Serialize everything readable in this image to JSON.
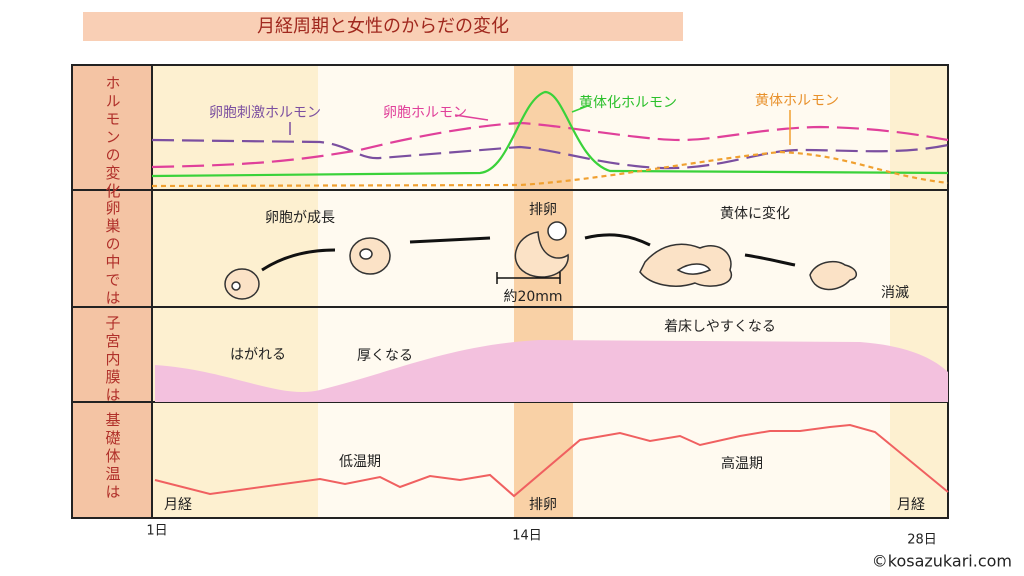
{
  "title": "月経周期と女性のからだの変化",
  "rows": [
    {
      "label": "ホルモンの変化",
      "items": [
        "卵胞刺激ホルモン",
        "卵胞ホルモン",
        "黄体化ホルモン",
        "黄体ホルモン"
      ]
    },
    {
      "label": "卵巣の中では",
      "items": [
        "卵胞が成長",
        "排卵",
        "約20mm",
        "黄体に変化",
        "消滅"
      ]
    },
    {
      "label": "子宮内膜は",
      "items": [
        "はがれる",
        "厚くなる",
        "着床しやすくなる"
      ]
    },
    {
      "label": "基礎体温は",
      "items": [
        "低温期",
        "高温期",
        "月経",
        "排卵",
        "月経"
      ]
    }
  ],
  "axis": [
    "1日",
    "14日",
    "28日"
  ],
  "credit": "©kosazukari.com"
}
